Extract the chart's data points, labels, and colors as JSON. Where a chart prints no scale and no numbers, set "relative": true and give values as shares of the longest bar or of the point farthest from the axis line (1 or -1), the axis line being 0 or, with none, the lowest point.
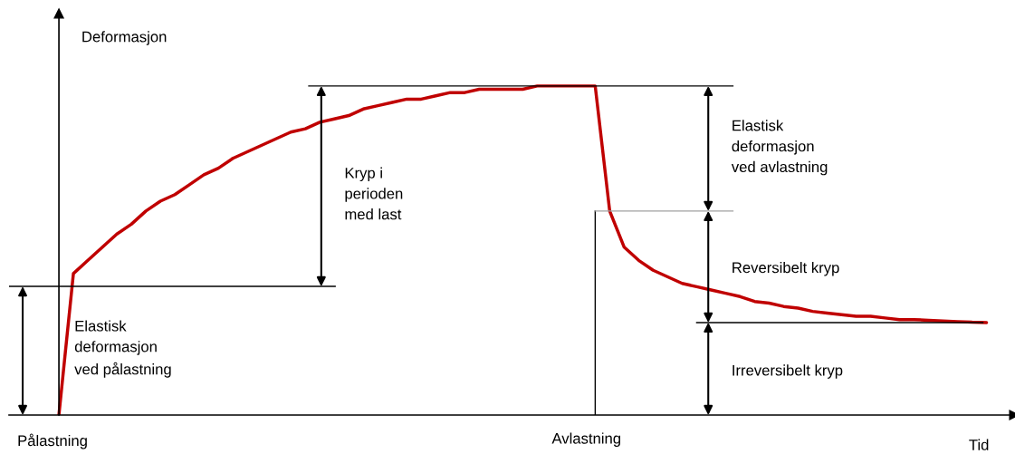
{
  "chart_data": {
    "type": "line",
    "relative": true,
    "xlabel": "Tid",
    "ylabel": "Deformasjon",
    "categories": [
      null,
      null,
      null,
      null,
      null,
      null,
      null,
      null,
      null,
      null,
      null,
      null,
      null,
      null,
      null,
      null,
      null,
      null,
      null,
      null,
      null,
      null,
      null,
      null,
      null,
      null,
      null,
      null,
      null,
      null,
      null,
      null,
      null,
      null,
      null,
      null,
      null,
      null,
      null,
      null,
      null,
      null,
      null,
      null,
      null,
      null,
      null,
      null,
      null,
      null,
      null,
      null,
      null,
      null,
      null,
      null,
      null,
      null,
      null,
      null,
      null,
      null,
      null,
      null,
      null
    ],
    "series": [
      {
        "color": "#c00000",
        "values": [
          0,
          0.43,
          0.47,
          0.51,
          0.55,
          0.58,
          0.62,
          0.65,
          0.67,
          0.7,
          0.73,
          0.75,
          0.78,
          0.8,
          0.82,
          0.84,
          0.86,
          0.87,
          0.89,
          0.9,
          0.91,
          0.93,
          0.94,
          0.95,
          0.96,
          0.96,
          0.97,
          0.98,
          0.98,
          0.99,
          0.99,
          0.99,
          0.99,
          1.0,
          1.0,
          1.0,
          1.0,
          1.0,
          0.62,
          0.51,
          0.47,
          0.44,
          0.42,
          0.4,
          0.39,
          0.38,
          0.37,
          0.36,
          0.345,
          0.34,
          0.33,
          0.325,
          0.315,
          0.31,
          0.305,
          0.3,
          0.3,
          0.295,
          0.29,
          0.29,
          0.288,
          0.286,
          0.284,
          0.282,
          0.281
        ]
      }
    ],
    "ref_lines": [
      {
        "axis": "y",
        "value": 0.391,
        "color": "#000000"
      },
      {
        "axis": "y",
        "value": 1.0,
        "color": "#000000"
      },
      {
        "axis": "y",
        "value": 0.62,
        "color": "#a0a0a0"
      },
      {
        "axis": "y",
        "value": 0.281,
        "color": "#000000"
      }
    ],
    "annotations": [
      "Elastisk\ndeformasjon\nved pålastning",
      "Kryp i\nperioden\nmed last",
      "Elastisk\ndeformasjon\nved avlastning",
      "Reversibelt kryp",
      "Irreversibelt kryp",
      "Pålastning",
      "Avlastning"
    ],
    "marker": "none",
    "line_style": "solid"
  }
}
